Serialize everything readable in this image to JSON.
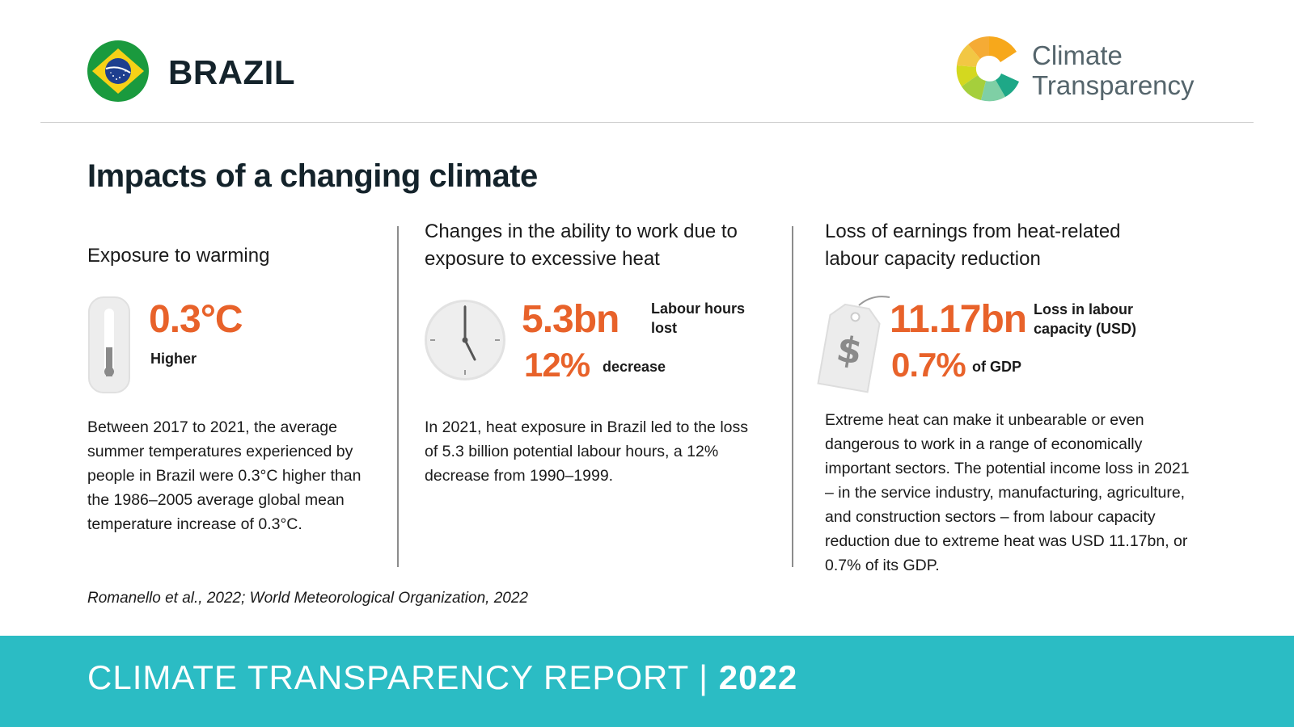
{
  "header": {
    "country": "BRAZIL",
    "logo_line1": "Climate",
    "logo_line2": "Transparency"
  },
  "page_title": "Impacts of a changing climate",
  "sections": [
    {
      "title": "Exposure to warming",
      "value": "0.3°C",
      "value_label": "Higher",
      "icon": "thermometer-icon",
      "body": "Between 2017 to 2021, the average summer temperatures experienced by people in Brazil were 0.3°C higher than the 1986–2005 average global mean temperature increase of 0.3°C."
    },
    {
      "title": "Changes in the ability to work due to exposure to excessive heat",
      "value": "5.3bn",
      "value_label": "Labour hours lost",
      "value2": "12%",
      "value2_label": "decrease",
      "icon": "clock-icon",
      "body": "In 2021, heat exposure in Brazil led to the loss of 5.3 billion potential labour hours, a 12% decrease from 1990–1999."
    },
    {
      "title": "Loss of earnings from heat-related labour capacity reduction",
      "value": "11.17bn",
      "value_label": "Loss in labour capacity (USD)",
      "value2": "0.7%",
      "value2_label": "of GDP",
      "icon": "price-tag-dollar-icon",
      "body": "Extreme heat can make it unbearable or even dangerous to work in a range of economically important sectors. The potential income loss in 2021 – in the service industry, manufacturing, agriculture, and construction sectors – from labour capacity reduction due to extreme heat was USD 11.17bn, or 0.7% of its GDP."
    }
  ],
  "source": "Romanello et al., 2022; World Meteorological Organization, 2022",
  "footer": {
    "report": "CLIMATE TRANSPARENCY REPORT |",
    "year": "2022"
  },
  "colors": {
    "accent": "#e8622a",
    "footer": "#2bbcc4",
    "title": "#14232b"
  }
}
